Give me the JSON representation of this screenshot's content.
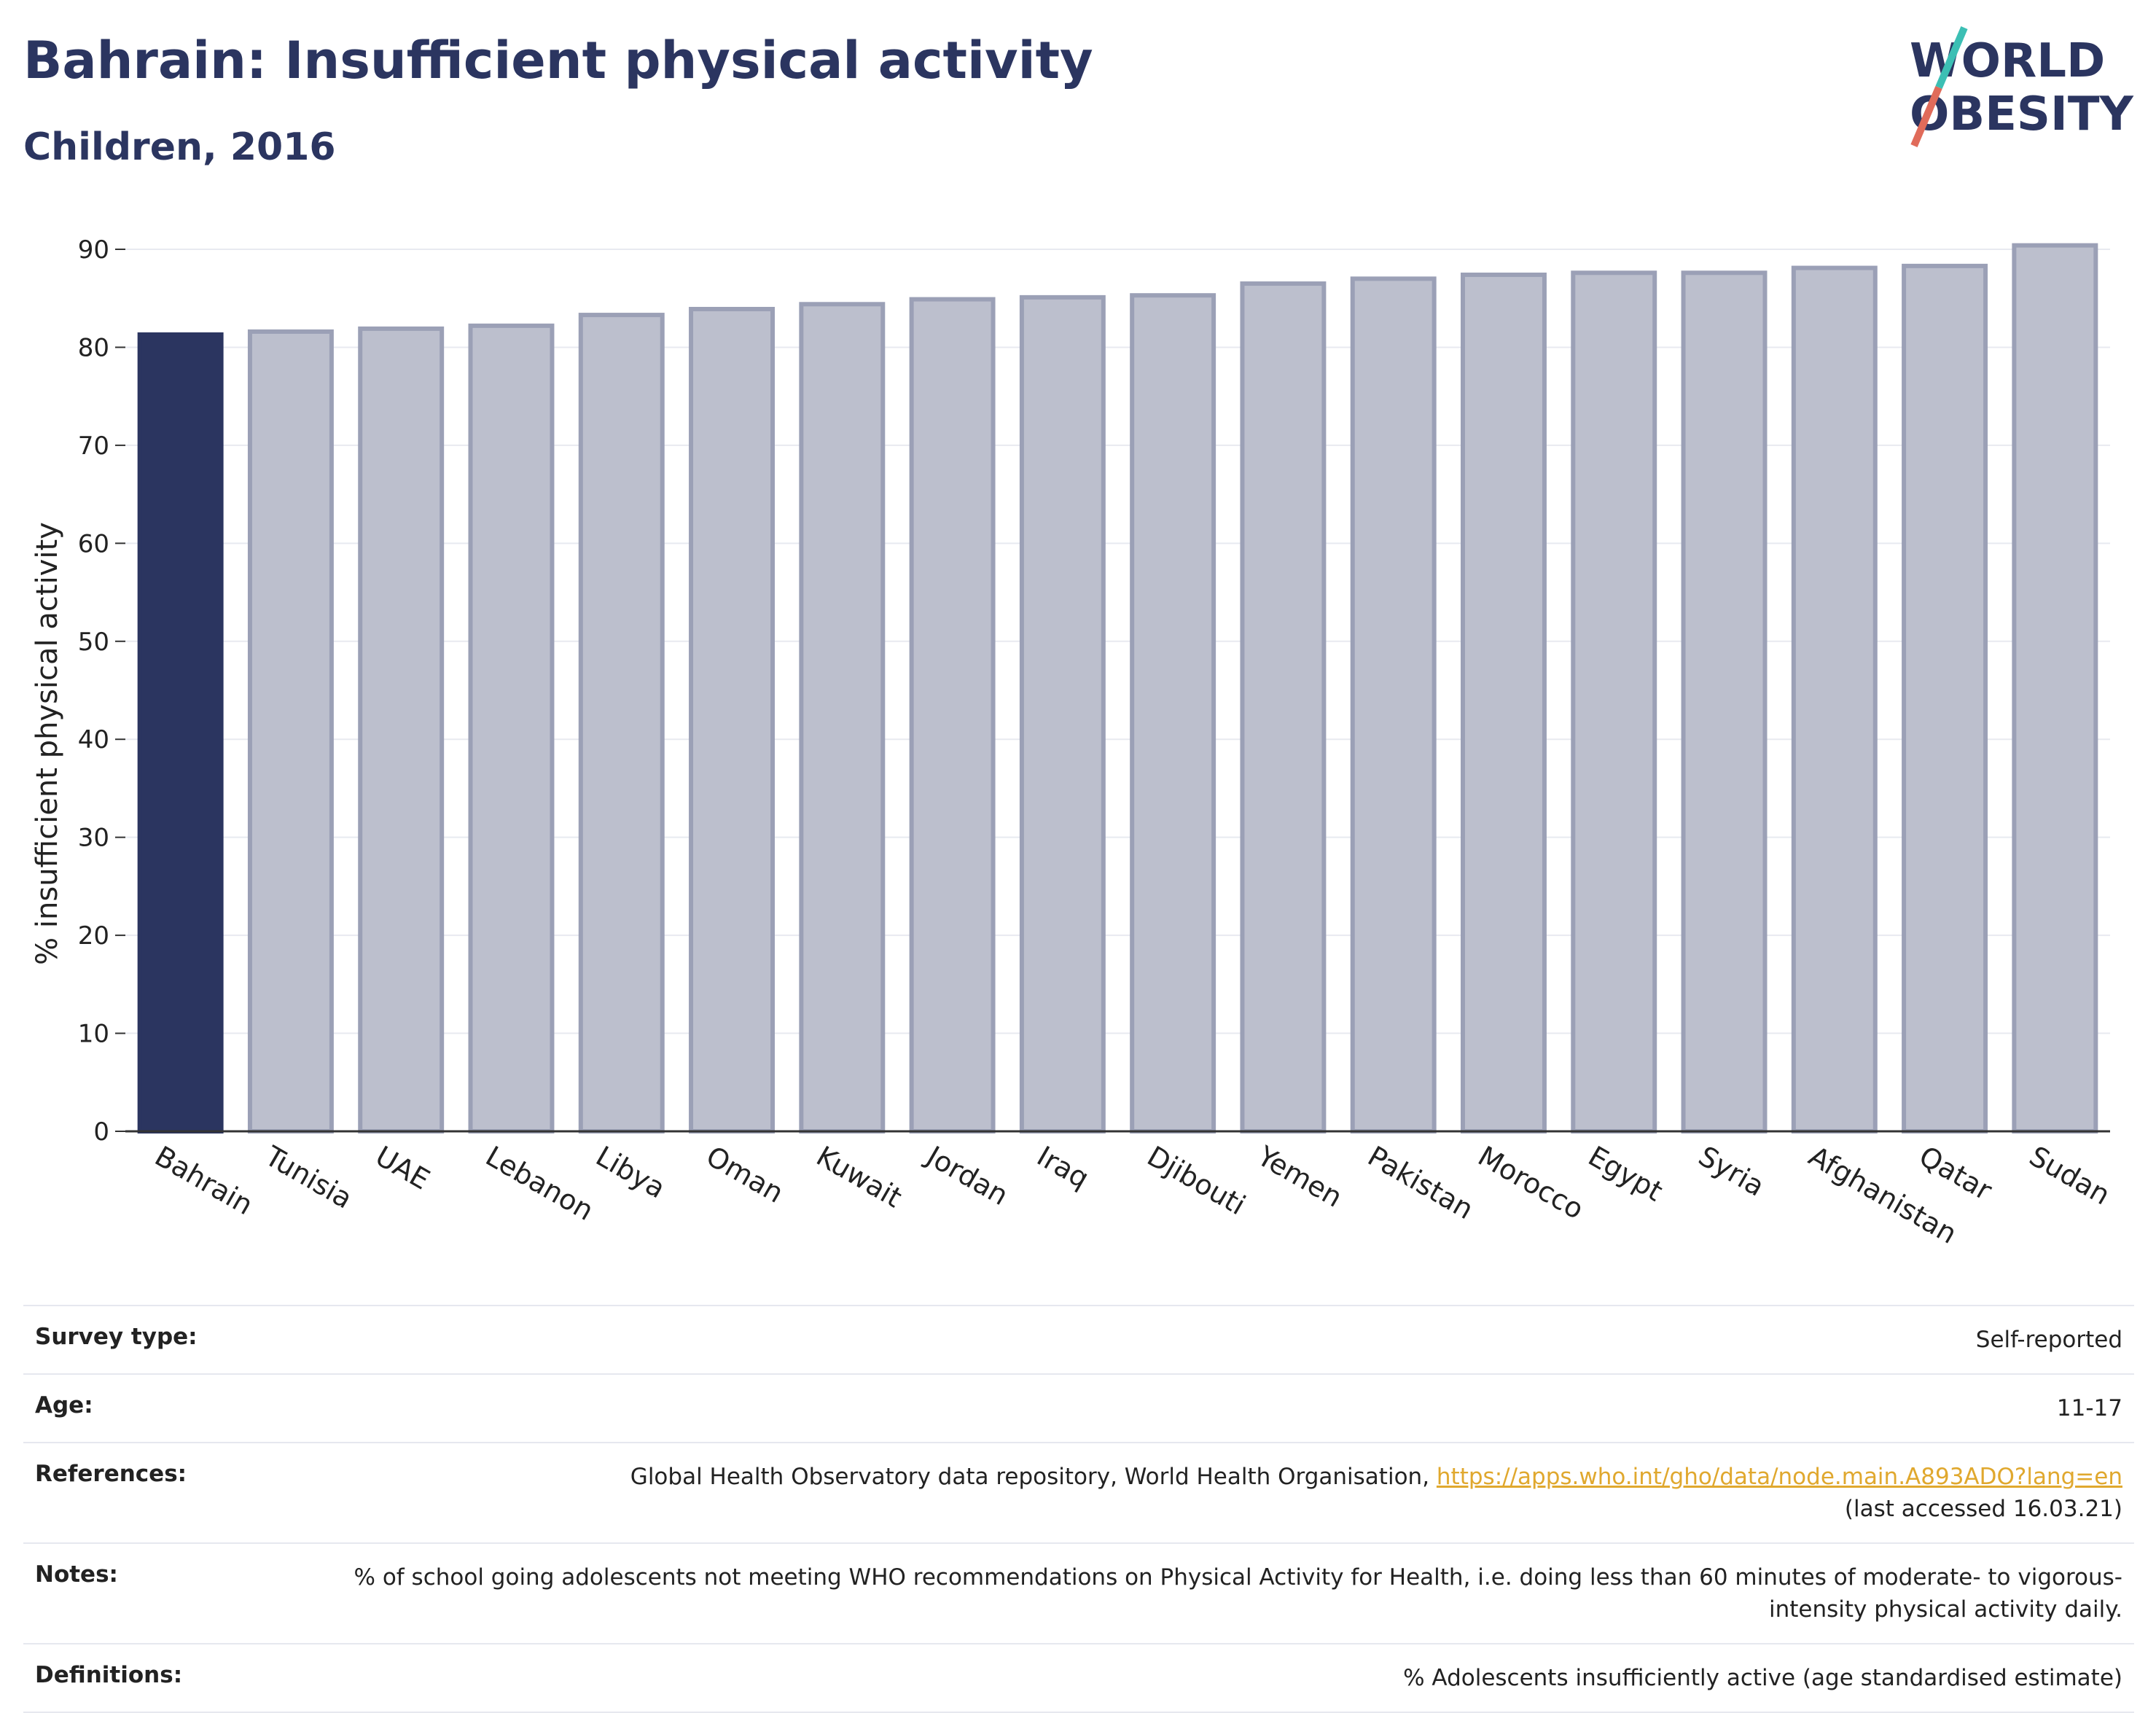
{
  "header": {
    "title": "Bahrain: Insufficient physical activity",
    "subtitle": "Children, 2016",
    "logo_line1": "WORLD",
    "logo_line2": "OBESITY"
  },
  "colors": {
    "highlight": "#2b3560",
    "bar": "#bcbfcd",
    "bar_stroke": "#9ba0b6",
    "logo_teal": "#3cbfb4",
    "logo_coral": "#e06b5a",
    "link": "#e0a82e"
  },
  "chart_data": {
    "type": "bar",
    "title": "Bahrain: Insufficient physical activity",
    "subtitle": "Children, 2016",
    "xlabel": "",
    "ylabel": "% insufficient physical activity",
    "ylim": [
      0,
      90
    ],
    "yticks": [
      0,
      10,
      20,
      30,
      40,
      50,
      60,
      70,
      80,
      90
    ],
    "grid": true,
    "highlight": "Bahrain",
    "categories": [
      "Bahrain",
      "Tunisia",
      "UAE",
      "Lebanon",
      "Libya",
      "Oman",
      "Kuwait",
      "Jordan",
      "Iraq",
      "Djibouti",
      "Yemen",
      "Pakistan",
      "Morocco",
      "Egypt",
      "Syria",
      "Afghanistan",
      "Qatar",
      "Sudan"
    ],
    "values": [
      81.3,
      81.6,
      81.9,
      82.2,
      83.3,
      83.9,
      84.4,
      84.9,
      85.1,
      85.3,
      86.5,
      87.0,
      87.4,
      87.6,
      87.6,
      88.1,
      88.3,
      90.4
    ]
  },
  "info": {
    "survey_type_label": "Survey type:",
    "survey_type_value": "Self-reported",
    "age_label": "Age:",
    "age_value": "11-17",
    "references_label": "References:",
    "references_text": "Global Health Observatory data repository, World Health Organisation, ",
    "references_link": "https://apps.who.int/gho/data/node.main.A893ADO?lang=en",
    "references_accessed": "(last accessed 16.03.21)",
    "notes_label": "Notes:",
    "notes_value": "% of school going adolescents not meeting WHO recommendations on Physical Activity for Health, i.e. doing less than 60 minutes of moderate- to vigorous-intensity physical activity daily.",
    "definitions_label": "Definitions:",
    "definitions_value": "% Adolescents insufficiently active (age standardised estimate)"
  }
}
